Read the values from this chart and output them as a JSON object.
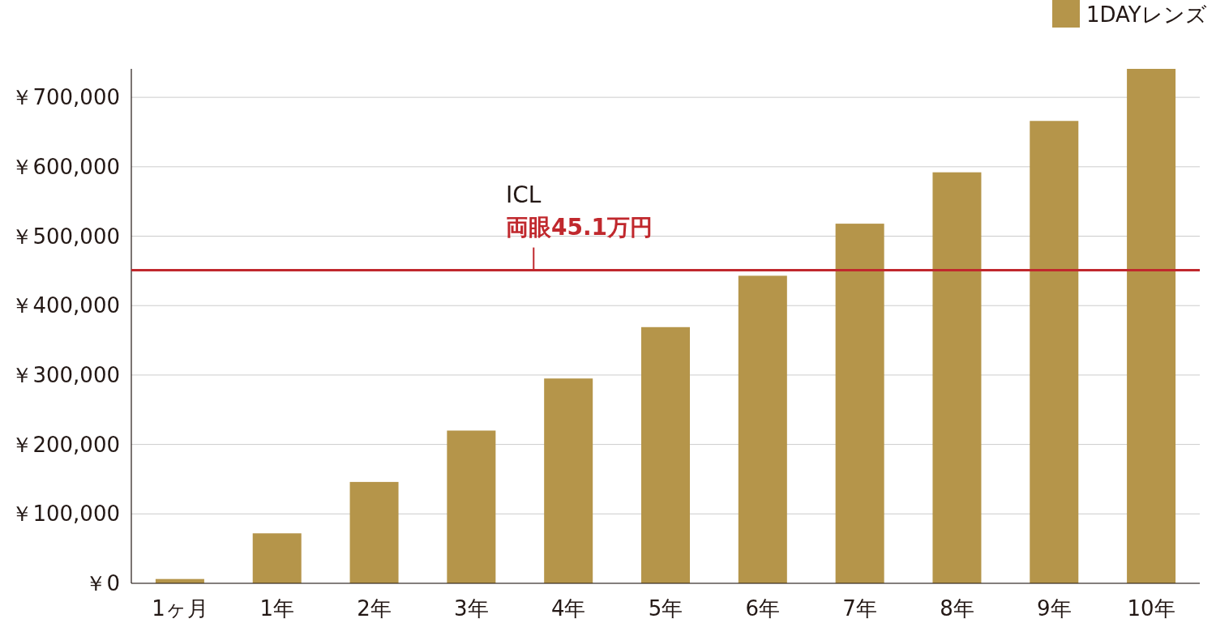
{
  "chart_data": {
    "type": "bar",
    "categories": [
      "1ヶ月",
      "1年",
      "2年",
      "3年",
      "4年",
      "5年",
      "6年",
      "7年",
      "8年",
      "9年",
      "10年"
    ],
    "series": [
      {
        "name": "1DAYレンズ",
        "color": "#b5954a",
        "values": [
          6200,
          72000,
          146000,
          220000,
          295000,
          369000,
          443000,
          518000,
          592000,
          666000,
          741000
        ]
      }
    ],
    "ylim": [
      0,
      741000
    ],
    "yticks": [
      {
        "value": 0,
        "label": "￥0"
      },
      {
        "value": 100000,
        "label": "￥100,000"
      },
      {
        "value": 200000,
        "label": "￥200,000"
      },
      {
        "value": 300000,
        "label": "￥300,000"
      },
      {
        "value": 400000,
        "label": "￥400,000"
      },
      {
        "value": 500000,
        "label": "￥500,000"
      },
      {
        "value": 600000,
        "label": "￥600,000"
      },
      {
        "value": 700000,
        "label": "￥700,000"
      }
    ],
    "ref_lines": [
      {
        "axis": "y",
        "value": 451000,
        "label": "両眼45.1万円",
        "color": "#c0282d"
      }
    ],
    "annotations": [
      "ICL"
    ],
    "grid": "y",
    "legend": "top right"
  }
}
